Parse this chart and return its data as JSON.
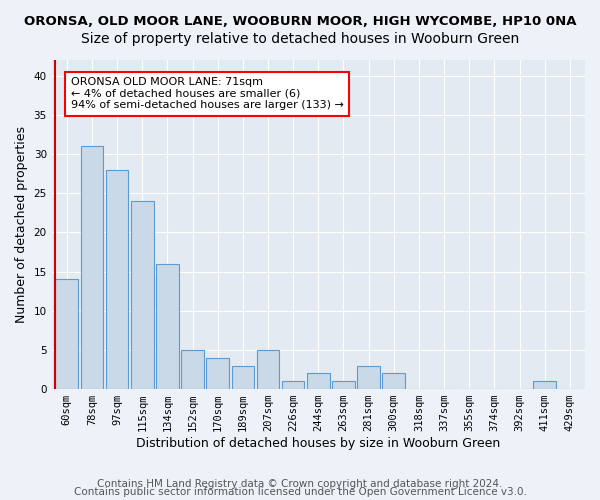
{
  "title": "ORONSA, OLD MOOR LANE, WOOBURN MOOR, HIGH WYCOMBE, HP10 0NA",
  "subtitle": "Size of property relative to detached houses in Wooburn Green",
  "xlabel": "Distribution of detached houses by size in Wooburn Green",
  "ylabel": "Number of detached properties",
  "categories": [
    "60sqm",
    "78sqm",
    "97sqm",
    "115sqm",
    "134sqm",
    "152sqm",
    "170sqm",
    "189sqm",
    "207sqm",
    "226sqm",
    "244sqm",
    "263sqm",
    "281sqm",
    "300sqm",
    "318sqm",
    "337sqm",
    "355sqm",
    "374sqm",
    "392sqm",
    "411sqm",
    "429sqm"
  ],
  "values": [
    14,
    31,
    28,
    24,
    16,
    5,
    4,
    3,
    5,
    1,
    2,
    1,
    3,
    2,
    0,
    0,
    0,
    0,
    0,
    1,
    0
  ],
  "bar_color": "#c9d9e8",
  "bar_edge_color": "#5b9bd5",
  "annotation_text": "ORONSA OLD MOOR LANE: 71sqm\n← 4% of detached houses are smaller (6)\n94% of semi-detached houses are larger (133) →",
  "vline_color": "#cc0000",
  "vline_x": -0.45,
  "ylim": [
    0,
    42
  ],
  "yticks": [
    0,
    5,
    10,
    15,
    20,
    25,
    30,
    35,
    40
  ],
  "footer_line1": "Contains HM Land Registry data © Crown copyright and database right 2024.",
  "footer_line2": "Contains public sector information licensed under the Open Government Licence v3.0.",
  "bg_color": "#edf2f8",
  "axes_bg": "#e4eaf2",
  "grid_color": "#ffffff",
  "title_fontsize": 9.5,
  "subtitle_fontsize": 10,
  "axis_label_fontsize": 9,
  "tick_fontsize": 7.5,
  "footer_fontsize": 7.5,
  "annot_fontsize": 8
}
